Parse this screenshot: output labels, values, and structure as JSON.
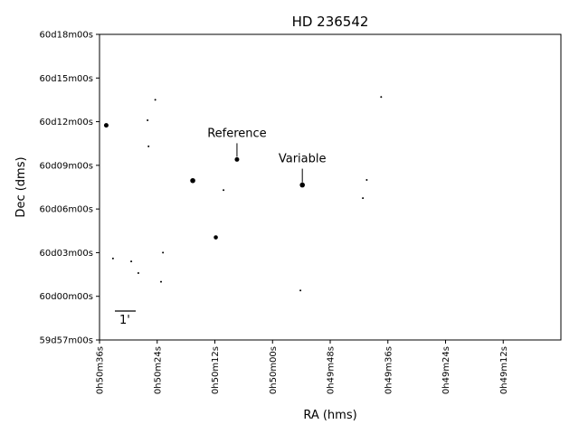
{
  "chart_data": {
    "type": "scatter",
    "title": "HD 236542",
    "xlabel": "RA (hms)",
    "ylabel": "Dec (dms)",
    "x_unit": "seconds of RA",
    "y_unit": "arcminutes",
    "xlim": [
      2436,
      2412
    ],
    "ylim": [
      -3,
      18
    ],
    "x_ticks": [
      {
        "value": 2436,
        "label": "0h50m36s"
      },
      {
        "value": 2433,
        "label": "0h50m24s"
      },
      {
        "value": 2430,
        "label": "0h50m12s"
      },
      {
        "value": 2427,
        "label": "0h50m00s"
      },
      {
        "value": 2424,
        "label": "0h49m48s"
      },
      {
        "value": 2421,
        "label": "0h49m36s"
      },
      {
        "value": 2418,
        "label": "0h49m24s"
      },
      {
        "value": 2415,
        "label": "0h49m12s"
      }
    ],
    "y_ticks": [
      {
        "value": -3,
        "label": "59d57m00s"
      },
      {
        "value": 0,
        "label": "60d00m00s"
      },
      {
        "value": 3,
        "label": "60d03m00s"
      },
      {
        "value": 6,
        "label": "60d06m00s"
      },
      {
        "value": 9,
        "label": "60d09m00s"
      },
      {
        "value": 12,
        "label": "60d12m00s"
      },
      {
        "value": 15,
        "label": "60d15m00s"
      },
      {
        "value": 18,
        "label": "60d18m00s"
      }
    ],
    "points": [
      {
        "x": 2435.65,
        "y": 11.75,
        "size": 2.5
      },
      {
        "x": 2435.3,
        "y": 2.6,
        "size": 1.0
      },
      {
        "x": 2434.35,
        "y": 2.4,
        "size": 1.0
      },
      {
        "x": 2433.98,
        "y": 1.6,
        "size": 1.0
      },
      {
        "x": 2433.5,
        "y": 12.1,
        "size": 1.0
      },
      {
        "x": 2433.45,
        "y": 10.3,
        "size": 1.0
      },
      {
        "x": 2433.1,
        "y": 13.5,
        "size": 1.0
      },
      {
        "x": 2432.8,
        "y": 1.0,
        "size": 1.0
      },
      {
        "x": 2432.7,
        "y": 3.0,
        "size": 1.0
      },
      {
        "x": 2431.15,
        "y": 7.95,
        "size": 2.8
      },
      {
        "x": 2429.95,
        "y": 4.05,
        "size": 2.3
      },
      {
        "x": 2429.55,
        "y": 7.3,
        "size": 1.0
      },
      {
        "x": 2428.85,
        "y": 9.4,
        "size": 2.5
      },
      {
        "x": 2425.55,
        "y": 0.4,
        "size": 1.0
      },
      {
        "x": 2425.45,
        "y": 7.65,
        "size": 2.8
      },
      {
        "x": 2422.3,
        "y": 6.75,
        "size": 1.0
      },
      {
        "x": 2422.1,
        "y": 8.0,
        "size": 1.0
      },
      {
        "x": 2421.35,
        "y": 13.7,
        "size": 1.0
      }
    ],
    "annotations": [
      {
        "text": "Reference",
        "x": 2428.85,
        "y": 9.4
      },
      {
        "text": "Variable",
        "x": 2425.45,
        "y": 7.65
      }
    ],
    "scale_bar": {
      "label": "1'",
      "length_arcmin": 1
    }
  }
}
